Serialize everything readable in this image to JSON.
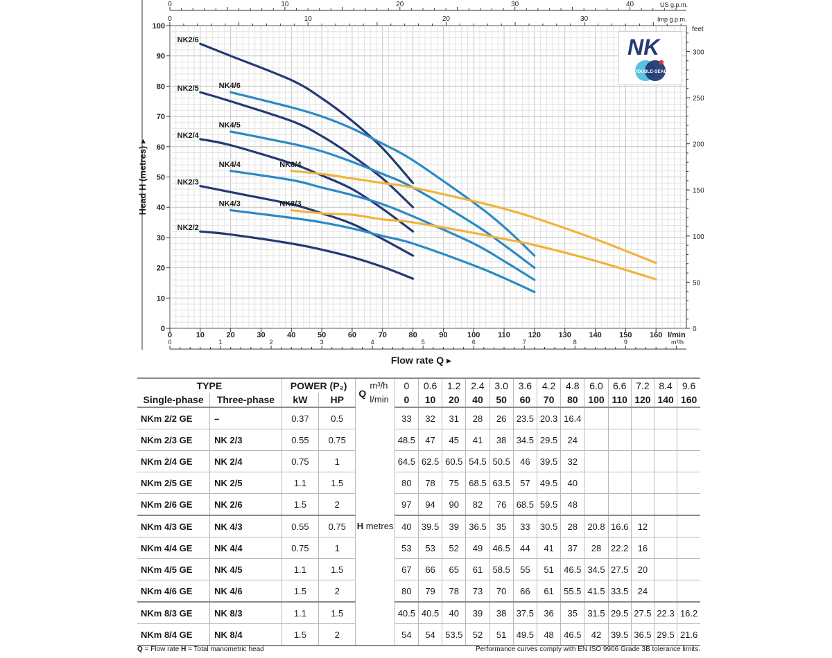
{
  "chart_data": {
    "type": "line",
    "title": "",
    "xlabel": "Flow rate Q",
    "ylabel": "Head H (metres)",
    "xlim": [
      0,
      170
    ],
    "ylim": [
      0,
      100
    ],
    "x_ticks": [
      "0",
      "10",
      "20",
      "30",
      "40",
      "50",
      "60",
      "70",
      "80",
      "90",
      "100",
      "110",
      "120",
      "130",
      "140",
      "150",
      "160"
    ],
    "x_unit": "l/min",
    "y_ticks": [
      "0",
      "10",
      "20",
      "30",
      "40",
      "50",
      "60",
      "70",
      "80",
      "90",
      "100"
    ],
    "right_axis": {
      "unit": "feet",
      "ticks": [
        "0",
        "50",
        "100",
        "150",
        "200",
        "250",
        "300"
      ]
    },
    "m3h_axis": {
      "unit": "m³/h",
      "ticks": [
        "0",
        "1",
        "2",
        "3",
        "4",
        "5",
        "6",
        "7",
        "8",
        "9"
      ]
    },
    "us_gpm_axis": {
      "unit": "US g.p.m.",
      "ticks": [
        "0",
        "10",
        "20",
        "30",
        "40"
      ]
    },
    "imp_gpm_axis": {
      "unit": "Imp g.p.m.",
      "ticks": [
        "0",
        "10",
        "20",
        "30"
      ]
    },
    "series": [
      {
        "name": "NK2/2",
        "color": "#233a74",
        "x": [
          10,
          20,
          40,
          50,
          60,
          70,
          80
        ],
        "values": [
          32,
          31,
          28,
          26,
          23.5,
          20.3,
          16.4
        ]
      },
      {
        "name": "NK2/3",
        "color": "#233a74",
        "x": [
          10,
          20,
          40,
          50,
          60,
          70,
          80
        ],
        "values": [
          47,
          45,
          41,
          38,
          34.5,
          29.5,
          24
        ]
      },
      {
        "name": "NK2/4",
        "color": "#233a74",
        "x": [
          10,
          20,
          40,
          50,
          60,
          70,
          80
        ],
        "values": [
          62.5,
          60.5,
          54.5,
          50.5,
          46,
          39.5,
          32
        ]
      },
      {
        "name": "NK2/5",
        "color": "#233a74",
        "x": [
          10,
          20,
          40,
          50,
          60,
          70,
          80
        ],
        "values": [
          78,
          75,
          68.5,
          63.5,
          57,
          49.5,
          40
        ]
      },
      {
        "name": "NK2/6",
        "color": "#233a74",
        "x": [
          10,
          20,
          40,
          50,
          60,
          70,
          80
        ],
        "values": [
          94,
          90,
          82,
          76,
          68.5,
          59.5,
          48
        ]
      },
      {
        "name": "NK4/3",
        "color": "#2b8ac6",
        "x": [
          20,
          40,
          50,
          60,
          70,
          80,
          100,
          110,
          120
        ],
        "values": [
          39,
          36.5,
          35,
          33,
          30.5,
          28,
          20.8,
          16.6,
          12
        ]
      },
      {
        "name": "NK4/4",
        "color": "#2b8ac6",
        "x": [
          20,
          40,
          50,
          60,
          70,
          80,
          100,
          110,
          120
        ],
        "values": [
          52,
          49,
          46.5,
          44,
          41,
          37,
          28,
          22.2,
          16
        ]
      },
      {
        "name": "NK4/5",
        "color": "#2b8ac6",
        "x": [
          20,
          40,
          50,
          60,
          70,
          80,
          100,
          110,
          120
        ],
        "values": [
          65,
          61,
          58.5,
          55,
          51,
          46.5,
          34.5,
          27.5,
          20
        ]
      },
      {
        "name": "NK4/6",
        "color": "#2b8ac6",
        "x": [
          20,
          40,
          50,
          60,
          70,
          80,
          100,
          110,
          120
        ],
        "values": [
          78,
          73,
          70,
          66,
          61,
          55.5,
          41.5,
          33.5,
          24
        ]
      },
      {
        "name": "NK8/3",
        "color": "#f0b43c",
        "x": [
          40,
          50,
          60,
          70,
          80,
          100,
          110,
          120,
          140,
          160
        ],
        "values": [
          39,
          38,
          37.5,
          36,
          35,
          31.5,
          29.5,
          27.5,
          22.3,
          16.2
        ]
      },
      {
        "name": "NK8/4",
        "color": "#f0b43c",
        "x": [
          40,
          50,
          60,
          70,
          80,
          100,
          110,
          120,
          140,
          160
        ],
        "values": [
          52,
          51,
          49.5,
          48,
          46.5,
          42,
          39.5,
          36.5,
          29.5,
          21.6
        ]
      }
    ]
  },
  "logo": {
    "text": "NK",
    "badge": "DOUBLE-SEAL",
    "brand_color": "#233a74"
  },
  "table": {
    "type_header": "TYPE",
    "single_phase_header": "Single-phase",
    "three_phase_header": "Three-phase",
    "power_header": "POWER (P₂)",
    "kw_header": "kW",
    "hp_header": "HP",
    "q_label": "Q",
    "m3h_label": "m³/h",
    "lmin_label": "l/min",
    "m3h_values": [
      "0",
      "0.6",
      "1.2",
      "2.4",
      "3.0",
      "3.6",
      "4.2",
      "4.8",
      "6.0",
      "6.6",
      "7.2",
      "8.4",
      "9.6"
    ],
    "lmin_values": [
      "0",
      "10",
      "20",
      "40",
      "50",
      "60",
      "70",
      "80",
      "100",
      "110",
      "120",
      "140",
      "160"
    ],
    "h_label_bold": "H",
    "h_label_rest": " metres",
    "rows": [
      {
        "single": "NKm 2/2 GE",
        "three": "–",
        "kw": "0.37",
        "hp": "0.5",
        "heads": [
          "33",
          "32",
          "31",
          "28",
          "26",
          "23.5",
          "20.3",
          "16.4",
          "",
          "",
          "",
          "",
          ""
        ]
      },
      {
        "single": "NKm 2/3 GE",
        "three": "NK 2/3",
        "kw": "0.55",
        "hp": "0.75",
        "heads": [
          "48.5",
          "47",
          "45",
          "41",
          "38",
          "34.5",
          "29.5",
          "24",
          "",
          "",
          "",
          "",
          ""
        ]
      },
      {
        "single": "NKm 2/4 GE",
        "three": "NK 2/4",
        "kw": "0.75",
        "hp": "1",
        "heads": [
          "64.5",
          "62.5",
          "60.5",
          "54.5",
          "50.5",
          "46",
          "39.5",
          "32",
          "",
          "",
          "",
          "",
          ""
        ]
      },
      {
        "single": "NKm 2/5 GE",
        "three": "NK 2/5",
        "kw": "1.1",
        "hp": "1.5",
        "heads": [
          "80",
          "78",
          "75",
          "68.5",
          "63.5",
          "57",
          "49.5",
          "40",
          "",
          "",
          "",
          "",
          ""
        ]
      },
      {
        "single": "NKm 2/6 GE",
        "three": "NK 2/6",
        "kw": "1.5",
        "hp": "2",
        "heads": [
          "97",
          "94",
          "90",
          "82",
          "76",
          "68.5",
          "59.5",
          "48",
          "",
          "",
          "",
          "",
          ""
        ]
      },
      {
        "single": "NKm 4/3 GE",
        "three": "NK 4/3",
        "kw": "0.55",
        "hp": "0.75",
        "heads": [
          "40",
          "39.5",
          "39",
          "36.5",
          "35",
          "33",
          "30.5",
          "28",
          "20.8",
          "16.6",
          "12",
          "",
          ""
        ]
      },
      {
        "single": "NKm 4/4 GE",
        "three": "NK 4/4",
        "kw": "0.75",
        "hp": "1",
        "heads": [
          "53",
          "53",
          "52",
          "49",
          "46.5",
          "44",
          "41",
          "37",
          "28",
          "22.2",
          "16",
          "",
          ""
        ]
      },
      {
        "single": "NKm 4/5 GE",
        "three": "NK 4/5",
        "kw": "1.1",
        "hp": "1.5",
        "heads": [
          "67",
          "66",
          "65",
          "61",
          "58.5",
          "55",
          "51",
          "46.5",
          "34.5",
          "27.5",
          "20",
          "",
          ""
        ]
      },
      {
        "single": "NKm 4/6 GE",
        "three": "NK 4/6",
        "kw": "1.5",
        "hp": "2",
        "heads": [
          "80",
          "79",
          "78",
          "73",
          "70",
          "66",
          "61",
          "55.5",
          "41.5",
          "33.5",
          "24",
          "",
          ""
        ]
      },
      {
        "single": "NKm 8/3 GE",
        "three": "NK 8/3",
        "kw": "1.1",
        "hp": "1.5",
        "heads": [
          "40.5",
          "40.5",
          "40",
          "39",
          "38",
          "37.5",
          "36",
          "35",
          "31.5",
          "29.5",
          "27.5",
          "22.3",
          "16.2"
        ]
      },
      {
        "single": "NKm 8/4 GE",
        "three": "NK 8/4",
        "kw": "1.5",
        "hp": "2",
        "heads": [
          "54",
          "54",
          "53.5",
          "52",
          "51",
          "49.5",
          "48",
          "46.5",
          "42",
          "39.5",
          "36.5",
          "29.5",
          "21.6"
        ]
      }
    ]
  },
  "footer": {
    "q_key": "Q",
    "q_desc": " = Flow rate  ",
    "h_key": "H",
    "h_desc": " = Total manometric head",
    "compliance": "Performance curves comply with EN ISO 9906 Grade 3B tolerance limits."
  }
}
